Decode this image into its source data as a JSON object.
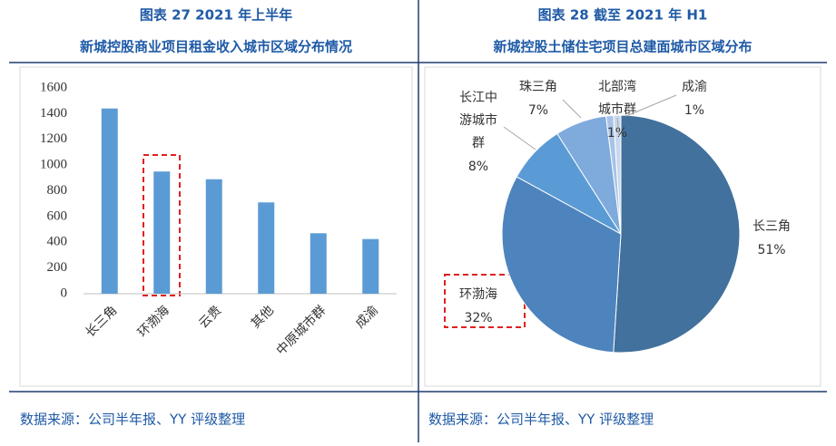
{
  "chart_data": [
    {
      "type": "bar",
      "title": "图表 27 2021 年上半年",
      "subtitle": "新城控股商业项目租金收入城市区域分布情况",
      "categories": [
        "长三角",
        "环渤海",
        "云贵",
        "其他",
        "中原城市群",
        "成渝"
      ],
      "values": [
        1440,
        950,
        890,
        710,
        470,
        425
      ],
      "color": "#5b9bd5",
      "ylim": [
        0,
        1600
      ],
      "yticks": [
        0,
        200,
        400,
        600,
        800,
        1000,
        1200,
        1400,
        1600
      ],
      "grid": false,
      "source": "数据来源：公司半年报、YY 评级整理"
    },
    {
      "type": "pie",
      "title": "图表 28 截至 2021 年 H1",
      "subtitle": "新城控股土储住宅项目总建面城市区域分布",
      "categories": [
        "长三角",
        "环渤海",
        "长江中游城市群",
        "珠三角",
        "北部湾城市群",
        "成渝"
      ],
      "values": [
        51,
        32,
        8,
        7,
        1,
        1
      ],
      "value_labels": [
        "51%",
        "32%",
        "8%",
        "7%",
        "1%",
        "1%"
      ],
      "colors": [
        "#41719c",
        "#4e84bd",
        "#5b9bd5",
        "#7eaadc",
        "#a8c3e6",
        "#c9d8ee"
      ],
      "source": "数据来源：公司半年报、YY 评级整理"
    }
  ]
}
